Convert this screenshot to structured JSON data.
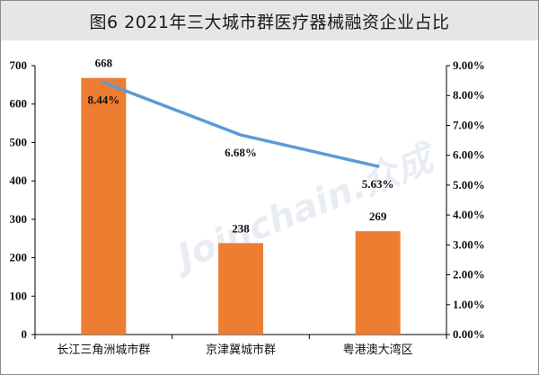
{
  "title": "图6  2021年三大城市群医疗器械融资企业占比",
  "watermark": "Joinchain.众成",
  "colors": {
    "bar": "#ED7D31",
    "line": "#5B9BD5",
    "axis": "#000000",
    "title_bg": "#E6E6E6"
  },
  "chart_data": {
    "type": "bar",
    "categories": [
      "长江三角洲城市群",
      "京津冀城市群",
      "粤港澳大湾区"
    ],
    "series": [
      {
        "type": "bar",
        "values": [
          668,
          238,
          269
        ],
        "labels": [
          "668",
          "238",
          "269"
        ],
        "axis": "left"
      },
      {
        "type": "line",
        "values": [
          8.44,
          6.68,
          5.63
        ],
        "labels": [
          "8.44%",
          "6.68%",
          "5.63%"
        ],
        "axis": "right"
      }
    ],
    "ylim": [
      0,
      700
    ],
    "y_ticks": [
      "0",
      "100",
      "200",
      "300",
      "400",
      "500",
      "600",
      "700"
    ],
    "y2lim": [
      0,
      9
    ],
    "y2_ticks": [
      "0.00%",
      "1.00%",
      "2.00%",
      "3.00%",
      "4.00%",
      "5.00%",
      "6.00%",
      "7.00%",
      "8.00%",
      "9.00%"
    ],
    "grid": false,
    "legend": "none"
  }
}
